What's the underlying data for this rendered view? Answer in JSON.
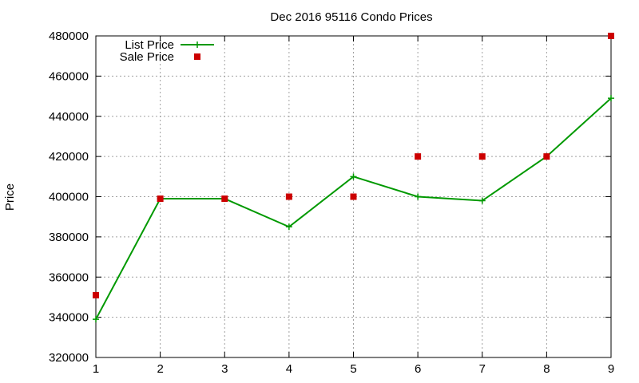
{
  "chart_data": {
    "type": "line",
    "title": "Dec 2016 95116 Condo Prices",
    "xlabel": "",
    "ylabel": "Price",
    "xlim": [
      1,
      9
    ],
    "ylim": [
      320000,
      480000
    ],
    "x_ticks": [
      1,
      2,
      3,
      4,
      5,
      6,
      7,
      8,
      9
    ],
    "y_ticks": [
      320000,
      340000,
      360000,
      380000,
      400000,
      420000,
      440000,
      460000,
      480000
    ],
    "grid": true,
    "legend_position": "top-left",
    "series": [
      {
        "name": "List Price",
        "style": "line-with-plus-markers",
        "color": "#009900",
        "x": [
          1,
          2,
          3,
          4,
          5,
          6,
          7,
          8,
          9
        ],
        "y": [
          339000,
          399000,
          399000,
          385000,
          410000,
          400000,
          398000,
          420000,
          449000
        ]
      },
      {
        "name": "Sale Price",
        "style": "square-points",
        "color": "#cc0000",
        "x": [
          1,
          2,
          3,
          4,
          5,
          6,
          7,
          8,
          9
        ],
        "y": [
          351000,
          399000,
          399000,
          400000,
          400000,
          420000,
          420000,
          420000,
          480000
        ]
      }
    ]
  }
}
